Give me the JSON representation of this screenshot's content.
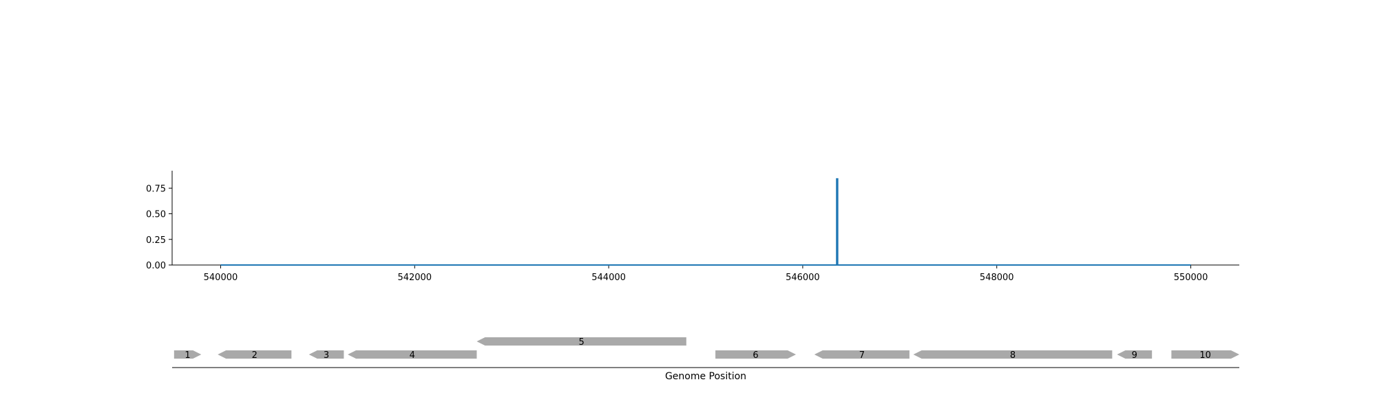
{
  "chart_data": [
    {
      "type": "line",
      "title": "",
      "xlabel": "",
      "ylabel": "",
      "xlim": [
        539500,
        550500
      ],
      "ylim": [
        0,
        0.92
      ],
      "x_ticks": [
        540000,
        542000,
        544000,
        546000,
        548000,
        550000
      ],
      "x_tick_labels": [
        "540000",
        "542000",
        "544000",
        "546000",
        "548000",
        "550000"
      ],
      "y_ticks": [
        0.0,
        0.25,
        0.5,
        0.75
      ],
      "y_tick_labels": [
        "0.00",
        "0.25",
        "0.50",
        "0.75"
      ],
      "grid": false,
      "line_color": "#1f77b4",
      "series": [
        {
          "x": [
            540000,
            546350,
            546350,
            546360,
            546360,
            550000
          ],
          "y": [
            0,
            0,
            0.84,
            0.84,
            0,
            0
          ]
        }
      ]
    },
    {
      "type": "gene-track",
      "xlabel": "Genome Position",
      "xlim": [
        539500,
        550500
      ],
      "feature_color": "#a9a9a9",
      "features": [
        {
          "label": "1",
          "start": 539520,
          "end": 539800,
          "strand": 1,
          "level": 0
        },
        {
          "label": "2",
          "start": 539970,
          "end": 540730,
          "strand": -1,
          "level": 0
        },
        {
          "label": "3",
          "start": 540910,
          "end": 541270,
          "strand": -1,
          "level": 0
        },
        {
          "label": "4",
          "start": 541310,
          "end": 542640,
          "strand": -1,
          "level": 0
        },
        {
          "label": "5",
          "start": 542640,
          "end": 544800,
          "strand": -1,
          "level": 1
        },
        {
          "label": "6",
          "start": 545100,
          "end": 545930,
          "strand": 1,
          "level": 0
        },
        {
          "label": "7",
          "start": 546120,
          "end": 547100,
          "strand": -1,
          "level": 0
        },
        {
          "label": "8",
          "start": 547140,
          "end": 549190,
          "strand": -1,
          "level": 0
        },
        {
          "label": "9",
          "start": 549240,
          "end": 549600,
          "strand": -1,
          "level": 0
        },
        {
          "label": "10",
          "start": 549800,
          "end": 550500,
          "strand": 1,
          "level": 0
        }
      ]
    }
  ]
}
